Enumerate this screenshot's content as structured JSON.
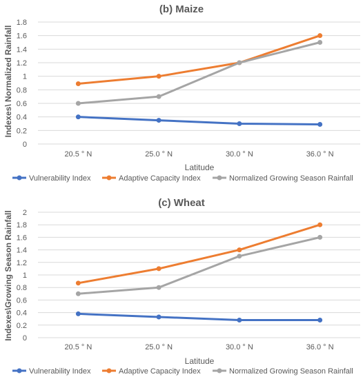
{
  "colors": {
    "Vulnerability Index": "#4472c4",
    "Adaptive Capacity Index": "#ed7d31",
    "Normalized Growing Season Rainfall": "#a5a5a5"
  },
  "chart_data": [
    {
      "type": "line",
      "title": "(b) Maize",
      "xlabel": "Latitude",
      "ylabel": "Indexes\\ Normalized Rainfall",
      "categories": [
        "20.5 ° N",
        "25.0 ° N",
        "30.0 ° N",
        "36.0 ° N"
      ],
      "ylim": [
        0,
        1.8
      ],
      "ytick_step": 0.2,
      "yticks": [
        "0",
        "0.2",
        "0.4",
        "0.6",
        "0.8",
        "1",
        "1.2",
        "1.4",
        "1.6",
        "1.8"
      ],
      "grid": true,
      "legend": "bottom",
      "series": [
        {
          "name": "Vulnerability Index",
          "values": [
            0.4,
            0.35,
            0.3,
            0.29
          ]
        },
        {
          "name": "Adaptive Capacity Index",
          "values": [
            0.89,
            1.0,
            1.2,
            1.6
          ]
        },
        {
          "name": "Normalized Growing Season Rainfall",
          "values": [
            0.6,
            0.7,
            1.2,
            1.5
          ]
        }
      ]
    },
    {
      "type": "line",
      "title": "(c) Wheat",
      "xlabel": "Latitude",
      "ylabel": "Indexes\\Growing Season Rainfall",
      "categories": [
        "20.5 ° N",
        "25.0 ° N",
        "30.0 ° N",
        "36.0 ° N"
      ],
      "ylim": [
        0,
        2
      ],
      "ytick_step": 0.2,
      "yticks": [
        "0",
        "0.2",
        "0.4",
        "0.6",
        "0.8",
        "1",
        "1.2",
        "1.4",
        "1.6",
        "1.8",
        "2"
      ],
      "grid": true,
      "legend": "bottom",
      "series": [
        {
          "name": "Vulnerability Index",
          "values": [
            0.38,
            0.33,
            0.28,
            0.28
          ]
        },
        {
          "name": "Adaptive Capacity Index",
          "values": [
            0.87,
            1.1,
            1.4,
            1.8
          ]
        },
        {
          "name": "Normalized Growing Season Rainfall",
          "values": [
            0.7,
            0.8,
            1.3,
            1.6
          ]
        }
      ]
    }
  ]
}
